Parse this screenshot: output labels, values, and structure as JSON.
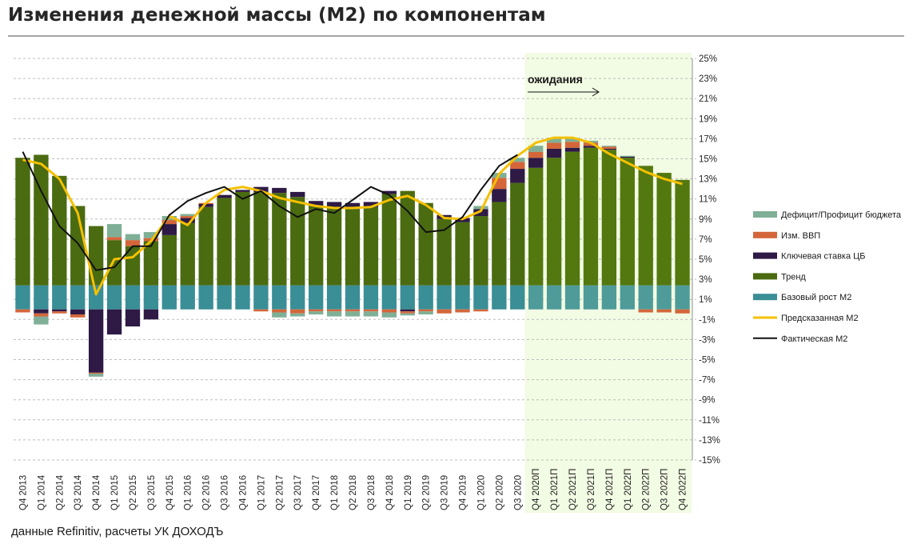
{
  "header": {
    "title": "Изменения денежной массы (М2) по компонентам",
    "source": "данные Refinitiv, расчеты УК ДОХОДЪ"
  },
  "chart_data": {
    "type": "bar",
    "stacked": true,
    "title": "Изменения денежной массы (М2) по компонентам",
    "annotation": "ожидания",
    "forecast_start": "Q4 2020П",
    "ylim": [
      -15,
      25
    ],
    "ytick_step": 2,
    "grid": true,
    "legend_position": "right",
    "categories": [
      "Q4 2013",
      "Q1 2014",
      "Q2 2014",
      "Q3 2014",
      "Q4 2014",
      "Q1 2015",
      "Q2 2015",
      "Q3 2015",
      "Q4 2015",
      "Q1 2016",
      "Q2 2016",
      "Q3 2016",
      "Q4 2016",
      "Q1 2017",
      "Q2 2017",
      "Q3 2017",
      "Q4 2017",
      "Q1 2018",
      "Q2 2018",
      "Q3 2018",
      "Q4 2018",
      "Q1 2019",
      "Q2 2019",
      "Q3 2019",
      "Q4 2019",
      "Q1 2020",
      "Q2 2020",
      "Q3 2020",
      "Q4 2020П",
      "Q1 2021П",
      "Q2 2021П",
      "Q3 2021П",
      "Q4 2021П",
      "Q1 2022П",
      "Q2 2022П",
      "Q3 2022П",
      "Q4 2022П"
    ],
    "series": [
      {
        "name": "Дефицит/Профицит бюджета",
        "kind": "bar",
        "color": "#7faf96",
        "values": [
          0,
          -0.8,
          0,
          0,
          -0.3,
          1.3,
          0.6,
          0.6,
          0.4,
          0.2,
          0,
          0,
          0,
          0,
          -0.5,
          -0.3,
          -0.3,
          -0.5,
          -0.5,
          -0.5,
          -0.5,
          -0.2,
          -0.3,
          0,
          0,
          0.3,
          0.5,
          0.4,
          0.6,
          0.5,
          0.4,
          0.2,
          0.1,
          0.1,
          0,
          0,
          0
        ]
      },
      {
        "name": "Изм. ВВП",
        "kind": "bar",
        "color": "#d4663a",
        "values": [
          -0.3,
          -0.3,
          -0.2,
          -0.3,
          -0.1,
          0.3,
          0.6,
          0.3,
          0.4,
          0.2,
          0.1,
          0,
          0,
          -0.2,
          -0.3,
          -0.4,
          -0.2,
          -0.2,
          -0.2,
          -0.2,
          -0.3,
          -0.2,
          -0.2,
          -0.4,
          -0.3,
          -0.2,
          1.1,
          0.7,
          0.6,
          0.6,
          0.6,
          0.3,
          0.2,
          0,
          -0.3,
          -0.3,
          -0.4
        ]
      },
      {
        "name": "Ключевая ставка ЦБ",
        "kind": "bar",
        "color": "#2e1a45",
        "values": [
          0,
          -0.4,
          -0.2,
          -0.5,
          -6.3,
          -2.5,
          -1.7,
          -1.0,
          1.1,
          0.5,
          0.3,
          0.3,
          0.2,
          0.5,
          0.5,
          0.5,
          0.5,
          0.6,
          0.6,
          0.5,
          0.3,
          -0.2,
          0,
          0.4,
          0.4,
          0.7,
          1.3,
          1.4,
          1.0,
          0.9,
          0.4,
          0.2,
          0.1,
          0.1,
          0,
          0,
          0
        ]
      },
      {
        "name": "Тренд",
        "kind": "bar",
        "color": "#4a6b10",
        "values": [
          12.7,
          13.0,
          10.9,
          7.9,
          5.9,
          4.5,
          3.9,
          4.4,
          5.0,
          6.2,
          7.8,
          8.7,
          9.3,
          9.3,
          9.2,
          8.8,
          7.9,
          7.7,
          7.6,
          7.8,
          9.1,
          9.4,
          8.2,
          6.6,
          6.3,
          6.9,
          8.3,
          10.2,
          11.7,
          12.7,
          13.3,
          13.7,
          13.5,
          12.7,
          11.9,
          11.2,
          10.5
        ]
      },
      {
        "name": "Базовый рост М2",
        "kind": "bar",
        "color": "#3a8e96",
        "values": [
          2.4,
          2.4,
          2.4,
          2.4,
          2.4,
          2.4,
          2.4,
          2.4,
          2.4,
          2.4,
          2.4,
          2.4,
          2.4,
          2.4,
          2.4,
          2.4,
          2.4,
          2.4,
          2.4,
          2.4,
          2.4,
          2.4,
          2.4,
          2.4,
          2.4,
          2.4,
          2.4,
          2.4,
          2.4,
          2.4,
          2.4,
          2.4,
          2.4,
          2.4,
          2.4,
          2.4,
          2.4
        ]
      },
      {
        "name": "Предсказанная М2",
        "kind": "line",
        "color": "#f5c000",
        "values": [
          14.9,
          14.5,
          13.0,
          9.6,
          1.5,
          5.0,
          5.2,
          6.8,
          9.3,
          8.4,
          10.6,
          11.9,
          12.2,
          11.8,
          11.1,
          10.7,
          10.3,
          10.1,
          10.1,
          10.2,
          10.9,
          11.3,
          10.4,
          9.1,
          9.0,
          9.8,
          13.5,
          15.3,
          16.6,
          17.1,
          17.1,
          16.6,
          15.5,
          14.6,
          13.7,
          13.0,
          12.5
        ]
      },
      {
        "name": "Фактическая М2",
        "kind": "line",
        "color": "#111111",
        "values": [
          15.7,
          11.8,
          8.3,
          6.6,
          3.9,
          4.2,
          6.3,
          6.3,
          9.4,
          10.8,
          11.6,
          12.2,
          11.0,
          11.8,
          10.3,
          9.2,
          10.0,
          9.6,
          10.9,
          12.2,
          11.4,
          9.8,
          7.7,
          7.9,
          9.2,
          11.9,
          14.3,
          15.4,
          null,
          null,
          null,
          null,
          null,
          null,
          null,
          null,
          null
        ]
      }
    ],
    "legend": [
      "Дефицит/Профицит бюджета",
      "Изм. ВВП",
      "Ключевая ставка ЦБ",
      "Тренд",
      "Базовый рост М2",
      "Предсказанная М2",
      "Фактическая М2"
    ]
  }
}
